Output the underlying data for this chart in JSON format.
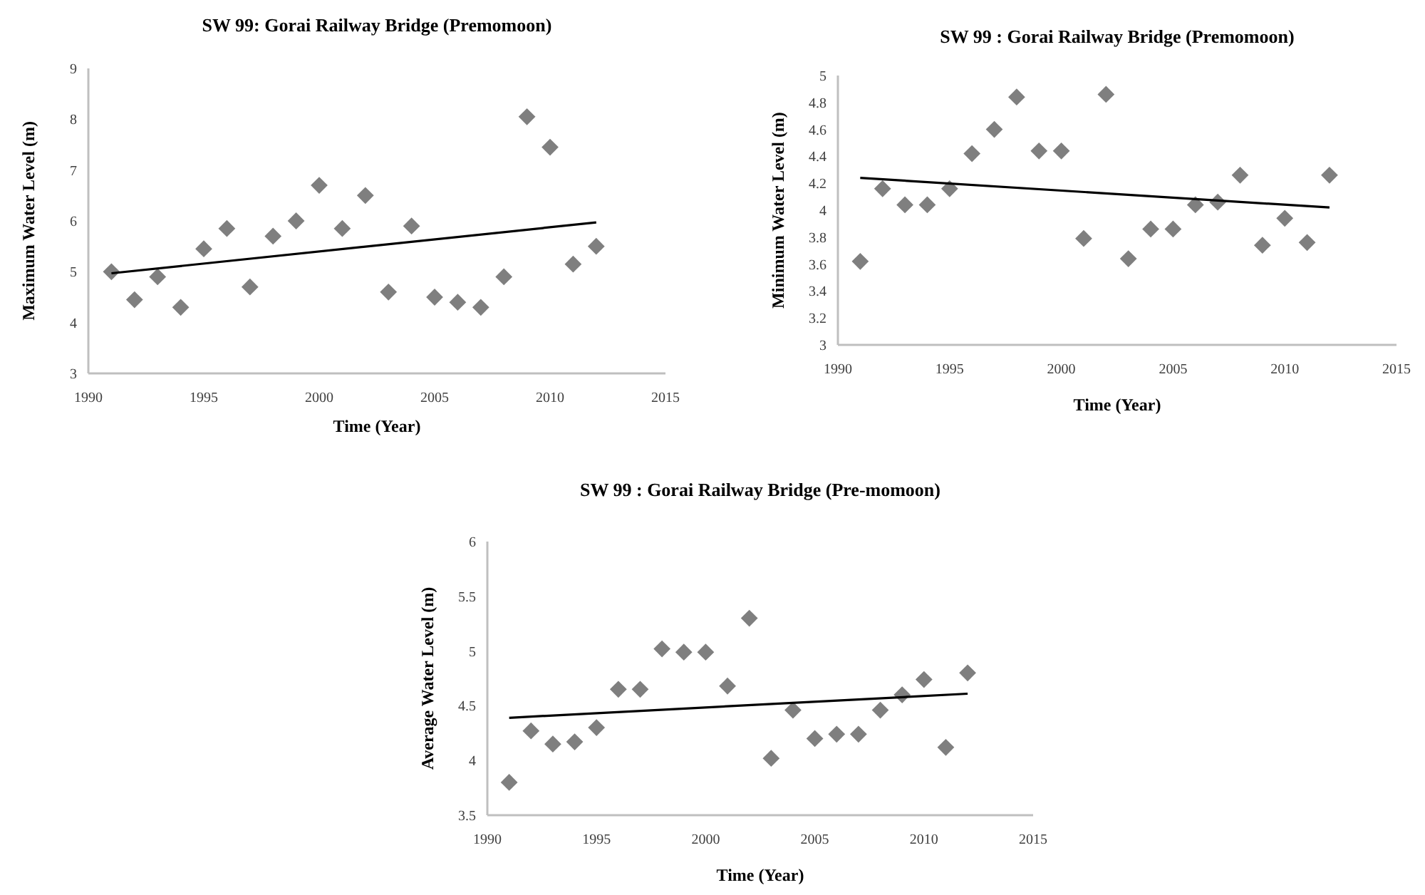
{
  "chart_data": [
    {
      "type": "scatter",
      "title": "SW 99: Gorai Railway Bridge (Premomoon)",
      "xlabel": "Time (Year)",
      "ylabel": "Maximum Water Level (m)",
      "xlim": [
        1990,
        2015
      ],
      "xticks": [
        1990,
        1995,
        2000,
        2005,
        2010,
        2015
      ],
      "ylim": [
        3,
        9
      ],
      "yticks": [
        3,
        4,
        5,
        6,
        7,
        8,
        9
      ],
      "grid": false,
      "series": [
        {
          "marker": "diamond",
          "color": "#7f7f7f",
          "x": [
            1991,
            1992,
            1993,
            1994,
            1995,
            1996,
            1997,
            1998,
            1999,
            2000,
            2001,
            2002,
            2003,
            2004,
            2005,
            2006,
            2007,
            2008,
            2009,
            2010,
            2011,
            2012
          ],
          "values": [
            5.0,
            4.45,
            4.9,
            4.3,
            5.45,
            5.85,
            4.7,
            5.7,
            6.0,
            6.7,
            5.85,
            6.5,
            4.6,
            5.9,
            4.5,
            4.4,
            4.3,
            4.9,
            8.05,
            7.45,
            5.15,
            5.5
          ]
        },
        {
          "type": "line",
          "marker": "none",
          "color": "#000000",
          "x": [
            1991,
            2012
          ],
          "values": [
            4.97,
            5.97
          ]
        }
      ]
    },
    {
      "type": "scatter",
      "title": "SW 99 : Gorai Railway Bridge (Premomoon)",
      "xlabel": "Time (Year)",
      "ylabel": "Minimum Water Level (m)",
      "xlim": [
        1990,
        2015
      ],
      "xticks": [
        1990,
        1995,
        2000,
        2005,
        2010,
        2015
      ],
      "ylim": [
        3,
        5
      ],
      "yticks": [
        3,
        3.2,
        3.4,
        3.6,
        3.8,
        4,
        4.2,
        4.4,
        4.6,
        4.8,
        5
      ],
      "grid": false,
      "series": [
        {
          "marker": "diamond",
          "color": "#7f7f7f",
          "x": [
            1991,
            1992,
            1993,
            1994,
            1995,
            1996,
            1997,
            1998,
            1999,
            2000,
            2001,
            2002,
            2003,
            2004,
            2005,
            2006,
            2007,
            2008,
            2009,
            2010,
            2011,
            2012
          ],
          "values": [
            3.62,
            4.16,
            4.04,
            4.04,
            4.16,
            4.42,
            4.6,
            4.84,
            4.44,
            4.44,
            3.79,
            4.86,
            3.64,
            3.86,
            3.86,
            4.04,
            4.06,
            4.26,
            3.74,
            3.94,
            3.76,
            4.26
          ]
        },
        {
          "type": "line",
          "marker": "none",
          "color": "#000000",
          "x": [
            1991,
            2012
          ],
          "values": [
            4.24,
            4.02
          ]
        }
      ]
    },
    {
      "type": "scatter",
      "title": "SW 99 : Gorai Railway Bridge (Pre-momoon)",
      "xlabel": "Time (Year)",
      "ylabel": "Average Water Level (m)",
      "xlim": [
        1990,
        2015
      ],
      "xticks": [
        1990,
        1995,
        2000,
        2005,
        2010,
        2015
      ],
      "ylim": [
        3.5,
        6
      ],
      "yticks": [
        3.5,
        4,
        4.5,
        5,
        5.5,
        6
      ],
      "grid": false,
      "series": [
        {
          "marker": "diamond",
          "color": "#7f7f7f",
          "x": [
            1991,
            1992,
            1993,
            1994,
            1995,
            1996,
            1997,
            1998,
            1999,
            2000,
            2001,
            2002,
            2003,
            2004,
            2005,
            2006,
            2007,
            2008,
            2009,
            2010,
            2011,
            2012
          ],
          "values": [
            3.8,
            4.27,
            4.15,
            4.17,
            4.3,
            4.65,
            4.65,
            5.02,
            4.99,
            4.99,
            4.68,
            5.3,
            4.02,
            4.46,
            4.2,
            4.24,
            4.24,
            4.46,
            4.6,
            4.74,
            4.12,
            4.8
          ]
        },
        {
          "type": "line",
          "marker": "none",
          "color": "#000000",
          "x": [
            1991,
            2012
          ],
          "values": [
            4.39,
            4.61
          ]
        }
      ]
    }
  ]
}
